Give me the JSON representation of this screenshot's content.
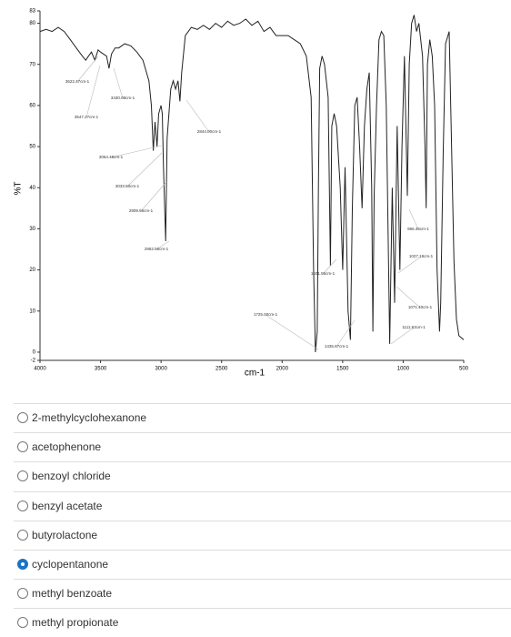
{
  "chart_data": {
    "type": "line",
    "xlabel": "cm-1",
    "ylabel": "%T",
    "color": "#222",
    "xlim": [
      4000,
      500
    ],
    "ylim": [
      -2,
      83
    ],
    "xticks": [
      4000,
      3500,
      3000,
      2500,
      2000,
      1500,
      1000,
      500
    ],
    "yticks": [
      -2,
      0,
      10,
      20,
      30,
      40,
      50,
      60,
      70,
      80,
      83
    ],
    "x": [
      4000,
      3950,
      3900,
      3850,
      3800,
      3750,
      3700,
      3650,
      3622,
      3600,
      3575,
      3547,
      3520,
      3500,
      3450,
      3430,
      3410,
      3380,
      3350,
      3300,
      3250,
      3200,
      3150,
      3100,
      3080,
      3064,
      3050,
      3033,
      3020,
      3000,
      2990,
      2980,
      2962,
      2950,
      2920,
      2900,
      2880,
      2860,
      2844,
      2830,
      2800,
      2750,
      2700,
      2650,
      2600,
      2550,
      2500,
      2450,
      2400,
      2350,
      2300,
      2250,
      2200,
      2150,
      2100,
      2050,
      2000,
      1950,
      1900,
      1850,
      1800,
      1760,
      1740,
      1725,
      1710,
      1700,
      1690,
      1670,
      1650,
      1620,
      1601,
      1590,
      1570,
      1550,
      1520,
      1500,
      1480,
      1455,
      1436,
      1420,
      1400,
      1380,
      1360,
      1340,
      1320,
      1300,
      1280,
      1260,
      1250,
      1240,
      1220,
      1200,
      1180,
      1160,
      1140,
      1111,
      1090,
      1071,
      1050,
      1027,
      1010,
      990,
      966,
      950,
      930,
      910,
      890,
      870,
      840,
      820,
      810,
      800,
      780,
      760,
      740,
      720,
      700,
      690,
      670,
      650,
      620,
      580,
      560,
      540,
      500
    ],
    "values": [
      78,
      78.5,
      78,
      79,
      78,
      76,
      74,
      72,
      71,
      72,
      73,
      71,
      73.5,
      73,
      72,
      69,
      72.5,
      74,
      74,
      75,
      74.5,
      73,
      71,
      66,
      60,
      49,
      56,
      50,
      58,
      60,
      58,
      45,
      27,
      52,
      64,
      66,
      64,
      66,
      61,
      68,
      77,
      79,
      78.5,
      79.5,
      78.5,
      80,
      79,
      80.5,
      79.5,
      80,
      81,
      79.5,
      80.5,
      78,
      79,
      77,
      77,
      77,
      76,
      75,
      72,
      62,
      20,
      0,
      5,
      40,
      69,
      72,
      70,
      62,
      21,
      55,
      58,
      55,
      40,
      20,
      45,
      10,
      3,
      35,
      60,
      62,
      50,
      35,
      55,
      64,
      68,
      40,
      5,
      38,
      60,
      76,
      78,
      77,
      60,
      2,
      40,
      12,
      55,
      20,
      50,
      72,
      38,
      70,
      80,
      82,
      78,
      80,
      72,
      50,
      35,
      70,
      76,
      72,
      60,
      20,
      5,
      12,
      48,
      75,
      78,
      22,
      8,
      4,
      3
    ],
    "annotations": [
      "3622.47cm-1",
      "3430.08cm-1",
      "3547.27cm-1",
      "3064.48cm-1",
      "3033.50cm-1",
      "2909.56cm-1",
      "2962.56cm-1",
      "2844.00cm-1",
      "966.45cm-1",
      "1027.19cm-1",
      "1601.55cm-1",
      "1071.40cm-1",
      "1725.00cm-1",
      "1111.63cm-1",
      "1435.67cm-1"
    ]
  },
  "options": [
    "2-methylcyclohexanone",
    "acetophenone",
    "benzoyl chloride",
    "benzyl acetate",
    "butyrolactone",
    "cyclopentanone",
    "methyl benzoate",
    "methyl propionate"
  ],
  "selected": 5
}
